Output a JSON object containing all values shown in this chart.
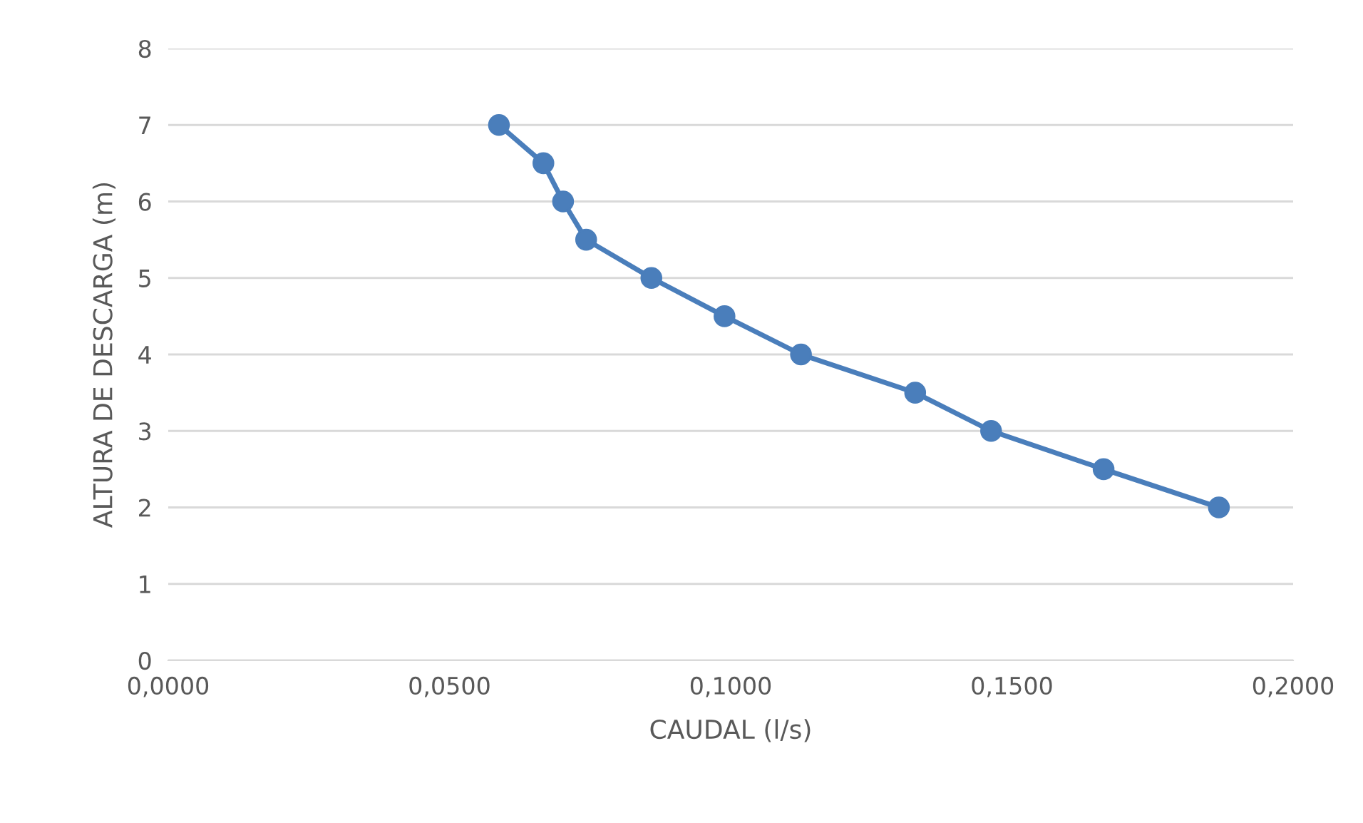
{
  "chart_data": {
    "type": "line",
    "xlabel": "CAUDAL (l/s)",
    "ylabel": "ALTURA DE DESCARGA (m)",
    "x": [
      0.0588,
      0.0667,
      0.0702,
      0.0743,
      0.0859,
      0.0989,
      0.1125,
      0.1328,
      0.1463,
      0.1663,
      0.1868
    ],
    "series": [
      {
        "color": "#4a7ebb",
        "values": [
          7,
          6.5,
          6,
          5.5,
          5,
          4.5,
          4,
          3.5,
          3,
          2.5,
          2
        ]
      }
    ],
    "xlim": [
      0,
      0.2
    ],
    "xticks": [
      {
        "value": 0,
        "label": "0,0000"
      },
      {
        "value": 0.05,
        "label": "0,0500"
      },
      {
        "value": 0.1,
        "label": "0,1000"
      },
      {
        "value": 0.15,
        "label": "0,1500"
      },
      {
        "value": 0.2,
        "label": "0,2000"
      }
    ],
    "ylim": [
      0,
      8
    ],
    "yticks": [
      0,
      1,
      2,
      3,
      4,
      5,
      6,
      7,
      8
    ],
    "grid": "y",
    "marker": "circle",
    "line_style": "solid",
    "legend": false
  }
}
